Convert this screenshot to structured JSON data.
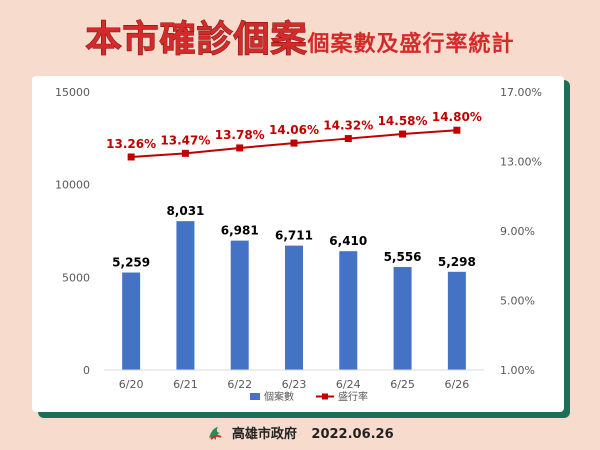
{
  "title": {
    "main": "本市確診個案",
    "sub": "個案數及盛行率統計"
  },
  "footer": {
    "org": "高雄市政府",
    "date": "2022.06.26"
  },
  "colors": {
    "bar": "#4472c4",
    "line": "#c00000",
    "title": "#d42a2a",
    "card_shadow": "#1f6e57"
  },
  "chart_data": {
    "type": "bar",
    "categories": [
      "6/20",
      "6/21",
      "6/22",
      "6/23",
      "6/24",
      "6/25",
      "6/26"
    ],
    "series": [
      {
        "name": "個案數",
        "type": "bar",
        "axis": "left",
        "values": [
          5259,
          8031,
          6981,
          6711,
          6410,
          5556,
          5298
        ],
        "labels": [
          "5,259",
          "8,031",
          "6,981",
          "6,711",
          "6,410",
          "5,556",
          "5,298"
        ]
      },
      {
        "name": "盛行率",
        "type": "line",
        "axis": "right",
        "values": [
          13.26,
          13.47,
          13.78,
          14.06,
          14.32,
          14.58,
          14.8
        ],
        "labels": [
          "13.26%",
          "13.47%",
          "13.78%",
          "14.06%",
          "14.32%",
          "14.58%",
          "14.80%"
        ]
      }
    ],
    "y_left": {
      "min": 0,
      "max": 15000,
      "ticks": [
        0,
        5000,
        10000,
        15000
      ],
      "tick_labels": [
        "0",
        "5000",
        "10000",
        "15000"
      ]
    },
    "y_right": {
      "min": 1,
      "max": 17,
      "ticks": [
        1,
        5,
        9,
        13,
        17
      ],
      "tick_labels": [
        "1.00%",
        "5.00%",
        "9.00%",
        "13.00%",
        "17.00%"
      ]
    },
    "legend": "bottom",
    "grid": false
  }
}
